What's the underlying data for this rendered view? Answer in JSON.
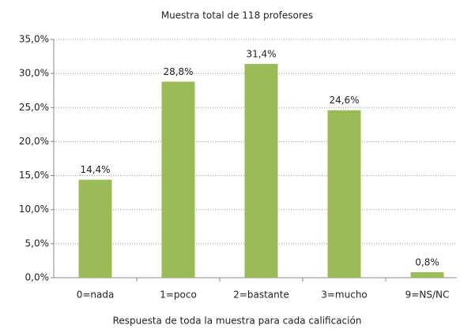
{
  "chart_data": {
    "type": "bar",
    "title": "Muestra total de 118 profesores",
    "x_label": "Respuesta de toda la muestra para cada calificación",
    "categories": [
      "0=nada",
      "1=poco",
      "2=bastante",
      "3=mucho",
      "9=NS/NC"
    ],
    "values": [
      14.4,
      28.8,
      31.4,
      24.6,
      0.8
    ],
    "value_labels": [
      "14,4%",
      "28,8%",
      "31,4%",
      "24,6%",
      "0,8%"
    ],
    "color": "#9bbb59",
    "ylim": [
      0,
      35
    ],
    "yticks": [
      {
        "value": 0,
        "label": "0,0%"
      },
      {
        "value": 5,
        "label": "5,0%"
      },
      {
        "value": 10,
        "label": "10,0%"
      },
      {
        "value": 15,
        "label": "15,0%"
      },
      {
        "value": 20,
        "label": "20,0%"
      },
      {
        "value": 25,
        "label": "25,0%"
      },
      {
        "value": 30,
        "label": "30,0%"
      },
      {
        "value": 35,
        "label": "35,0%"
      }
    ],
    "grid": true
  }
}
